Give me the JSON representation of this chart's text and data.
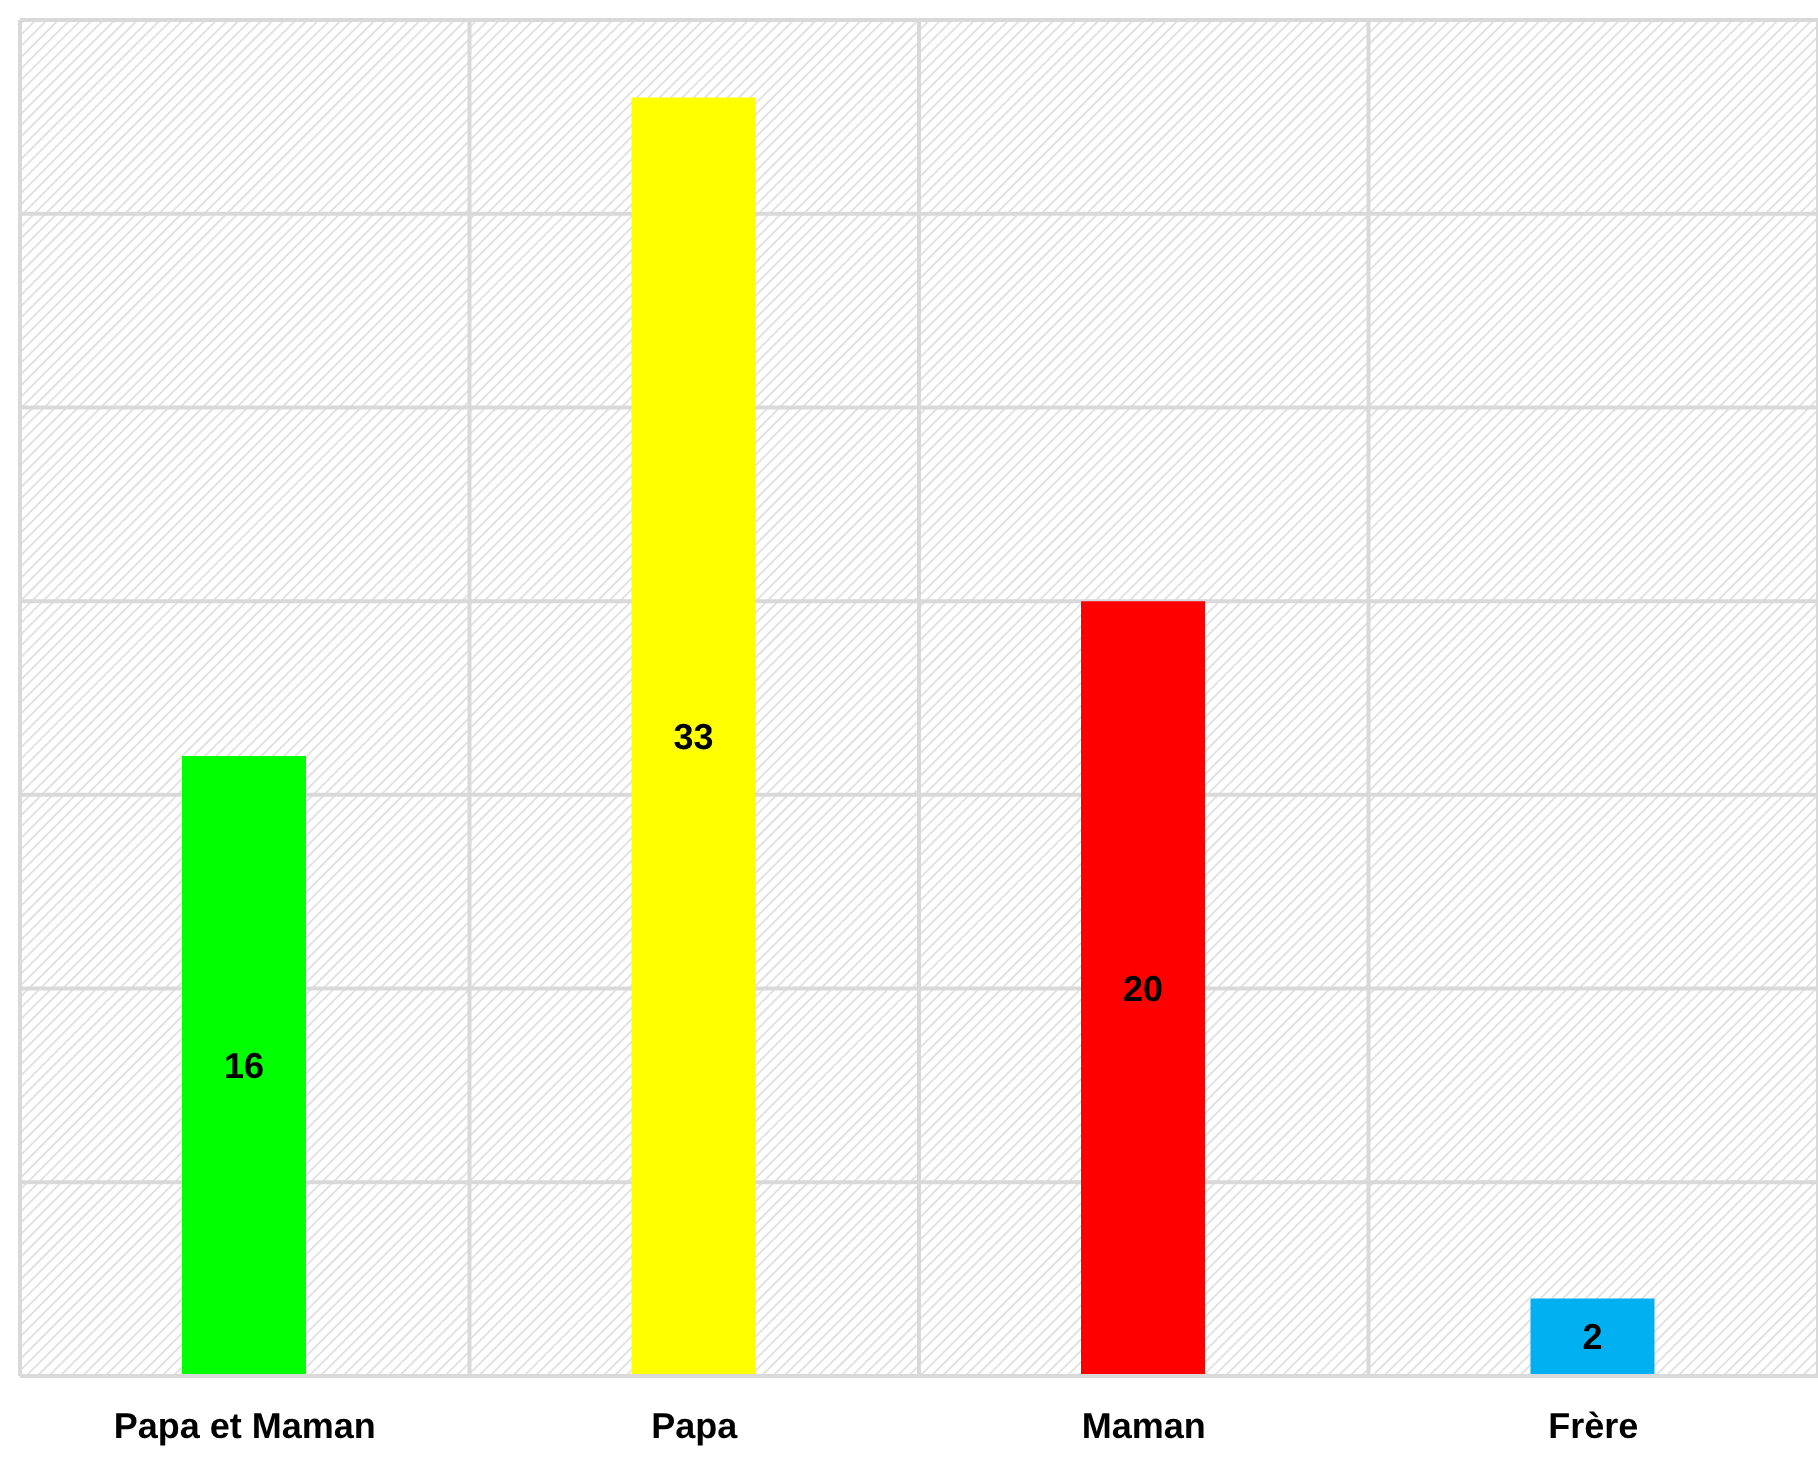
{
  "chart_data": {
    "type": "bar",
    "categories": [
      "Papa et Maman",
      "Papa",
      "Maman",
      "Frère"
    ],
    "values": [
      16,
      33,
      20,
      2
    ],
    "colors": [
      "#00ff00",
      "#ffff00",
      "#ff0000",
      "#00b0f0"
    ],
    "ylim": [
      0,
      35
    ],
    "yticks": [
      {
        "value": 0,
        "label": null
      },
      {
        "value": 5,
        "label": null
      },
      {
        "value": 10,
        "label": null
      },
      {
        "value": 15,
        "label": null
      },
      {
        "value": 20,
        "label": null
      },
      {
        "value": 25,
        "label": null
      },
      {
        "value": 30,
        "label": null
      },
      {
        "value": 35,
        "label": null
      }
    ],
    "tick_labels": "x",
    "grid": true,
    "data_labels": true
  }
}
